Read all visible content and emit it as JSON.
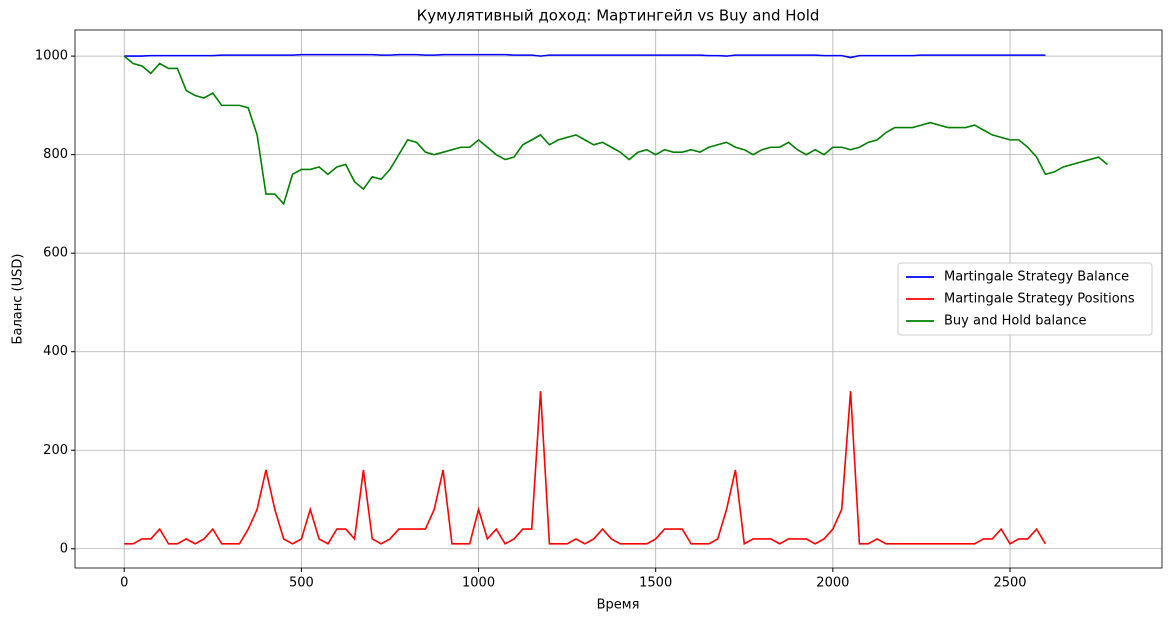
{
  "chart_data": {
    "type": "line",
    "title": "Кумулятивный доход: Мартингейл vs Buy and Hold",
    "xlabel": "Время",
    "ylabel": "Баланс (USD)",
    "x": [
      0,
      25,
      50,
      75,
      100,
      125,
      150,
      175,
      200,
      225,
      250,
      275,
      300,
      325,
      350,
      375,
      400,
      425,
      450,
      475,
      500,
      525,
      550,
      575,
      600,
      625,
      650,
      675,
      700,
      725,
      750,
      775,
      800,
      825,
      850,
      875,
      900,
      925,
      950,
      975,
      1000,
      1025,
      1050,
      1075,
      1100,
      1125,
      1150,
      1175,
      1200,
      1225,
      1250,
      1275,
      1300,
      1325,
      1350,
      1375,
      1400,
      1425,
      1450,
      1475,
      1500,
      1525,
      1550,
      1575,
      1600,
      1625,
      1650,
      1675,
      1700,
      1725,
      1750,
      1775,
      1800,
      1825,
      1850,
      1875,
      1900,
      1925,
      1950,
      1975,
      2000,
      2025,
      2050,
      2075,
      2100,
      2125,
      2150,
      2175,
      2200,
      2225,
      2250,
      2275,
      2300,
      2325,
      2350,
      2375,
      2400,
      2425,
      2450,
      2475,
      2500,
      2525,
      2550,
      2575,
      2600,
      2625,
      2650,
      2675,
      2700,
      2725,
      2750,
      2775
    ],
    "series": [
      {
        "name": "Martingale Strategy Balance",
        "color": "#0000ff",
        "values": [
          1000,
          1000,
          1000,
          1001,
          1001,
          1001,
          1001,
          1001,
          1001,
          1001,
          1001,
          1002,
          1002,
          1002,
          1002,
          1002,
          1002,
          1002,
          1002,
          1002,
          1003,
          1003,
          1003,
          1003,
          1003,
          1003,
          1003,
          1003,
          1003,
          1002,
          1002,
          1003,
          1003,
          1003,
          1002,
          1002,
          1003,
          1003,
          1003,
          1003,
          1003,
          1003,
          1003,
          1003,
          1002,
          1002,
          1002,
          1000,
          1002,
          1002,
          1002,
          1002,
          1002,
          1002,
          1002,
          1002,
          1002,
          1002,
          1002,
          1002,
          1002,
          1002,
          1002,
          1002,
          1002,
          1002,
          1001,
          1001,
          1000,
          1002,
          1002,
          1002,
          1002,
          1002,
          1002,
          1002,
          1002,
          1002,
          1002,
          1001,
          1001,
          1001,
          997,
          1001,
          1001,
          1001,
          1001,
          1001,
          1001,
          1001,
          1002,
          1002,
          1002,
          1002,
          1002,
          1002,
          1002,
          1002,
          1002,
          1002,
          1002,
          1002,
          1002,
          1002,
          1002,
          null,
          null,
          null,
          null,
          null,
          null,
          null
        ]
      },
      {
        "name": "Martingale Strategy Positions",
        "color": "#ff0000",
        "values": [
          10,
          10,
          20,
          20,
          40,
          10,
          10,
          20,
          10,
          20,
          40,
          10,
          10,
          10,
          40,
          80,
          160,
          80,
          20,
          10,
          20,
          80,
          20,
          10,
          40,
          40,
          20,
          160,
          20,
          10,
          20,
          40,
          40,
          40,
          40,
          80,
          160,
          10,
          10,
          10,
          80,
          20,
          40,
          10,
          20,
          40,
          40,
          320,
          10,
          10,
          10,
          20,
          10,
          20,
          40,
          20,
          10,
          10,
          10,
          10,
          20,
          40,
          40,
          40,
          10,
          10,
          10,
          20,
          80,
          160,
          10,
          20,
          20,
          20,
          10,
          20,
          20,
          20,
          10,
          20,
          40,
          80,
          320,
          10,
          10,
          20,
          10,
          10,
          10,
          10,
          10,
          10,
          10,
          10,
          10,
          10,
          10,
          20,
          20,
          40,
          10,
          20,
          20,
          40,
          10,
          null,
          null,
          null,
          null,
          null,
          null,
          null
        ]
      },
      {
        "name": "Buy and Hold balance",
        "color": "#008000",
        "values": [
          1000,
          985,
          980,
          965,
          985,
          975,
          975,
          930,
          920,
          915,
          925,
          900,
          900,
          900,
          895,
          840,
          720,
          720,
          700,
          760,
          770,
          770,
          775,
          760,
          775,
          780,
          745,
          730,
          755,
          750,
          770,
          800,
          830,
          825,
          805,
          800,
          805,
          810,
          815,
          815,
          830,
          815,
          800,
          790,
          795,
          820,
          830,
          840,
          820,
          830,
          835,
          840,
          830,
          820,
          825,
          815,
          805,
          790,
          805,
          810,
          800,
          810,
          805,
          805,
          810,
          805,
          815,
          820,
          825,
          815,
          810,
          800,
          810,
          815,
          815,
          825,
          810,
          800,
          810,
          800,
          815,
          815,
          810,
          815,
          825,
          830,
          845,
          855,
          855,
          855,
          860,
          865,
          860,
          855,
          855,
          855,
          860,
          850,
          840,
          835,
          830,
          830,
          815,
          795,
          760,
          765,
          775,
          780,
          785,
          790,
          795,
          780
        ]
      }
    ],
    "xlim": [
      -139,
      2929
    ],
    "ylim": [
      -39,
      1053
    ],
    "xticks": [
      0,
      500,
      1000,
      1500,
      2000,
      2500
    ],
    "yticks": [
      0,
      200,
      400,
      600,
      800,
      1000
    ],
    "grid": true,
    "legend": "right"
  }
}
